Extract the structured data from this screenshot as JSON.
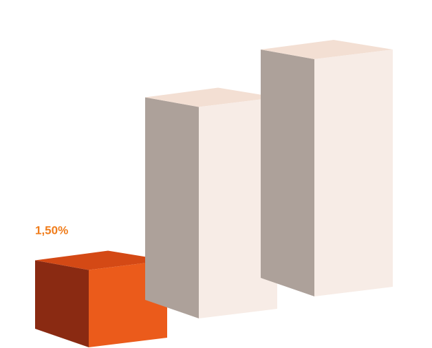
{
  "chart_data": {
    "type": "bar",
    "style": "3d-boxes",
    "title": "",
    "xlabel": "",
    "ylabel": "",
    "grid": false,
    "legend": "none",
    "ylim": [
      0,
      5.0
    ],
    "categories": [
      "",
      "",
      ""
    ],
    "values": [
      1.5,
      4.1,
      4.6
    ],
    "data_labels": [
      "1,50%",
      "",
      ""
    ],
    "highlight_index": 0
  },
  "colors": {
    "highlight_front": "#EB5B1B",
    "highlight_side": "#8A2A12",
    "highlight_top": "#D44915",
    "muted_front": "#F7ECE6",
    "muted_side": "#ADA19A",
    "muted_top": "#F3DFD3",
    "label_text": "#F07D1C",
    "background": "#FFFFFF"
  }
}
